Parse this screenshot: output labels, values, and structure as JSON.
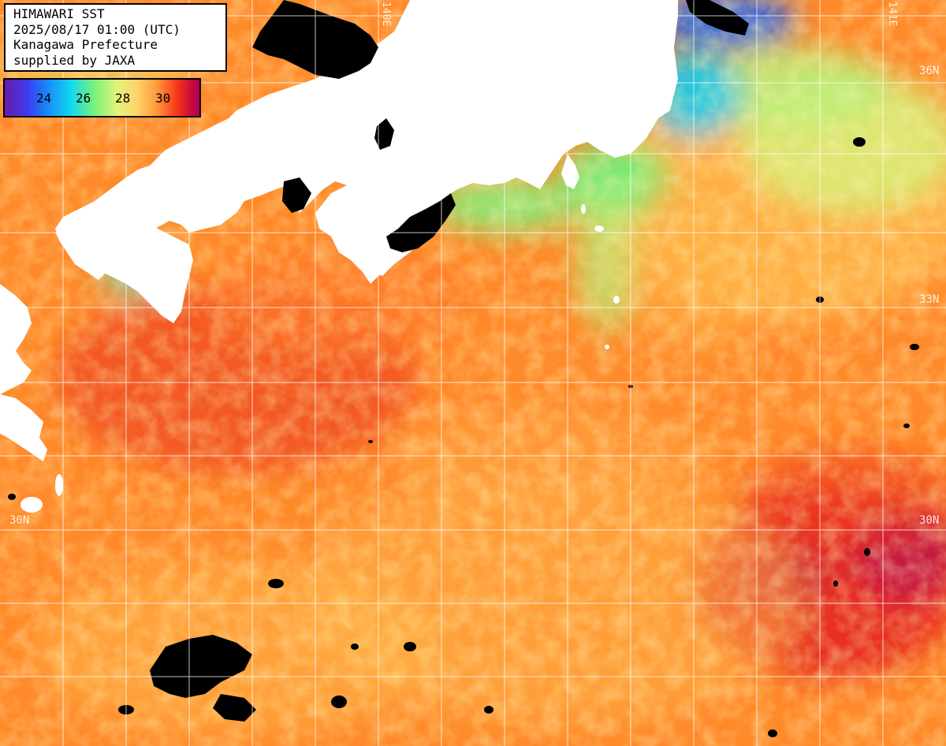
{
  "info": {
    "line1": "HIMAWARI SST",
    "line2": "2025/08/17 01:00 (UTC)",
    "line3": "Kanagawa Prefecture",
    "line4": "supplied by JAXA"
  },
  "legend": {
    "labels": [
      "24",
      "26",
      "28",
      "30"
    ],
    "colors": [
      "#6a1aa8",
      "#1a8af8",
      "#10d8f0",
      "#7af27a",
      "#ffd26a",
      "#ff9a3a",
      "#f83a1a",
      "#b0005a"
    ]
  },
  "grid_labels": {
    "lat_36": "36N",
    "lat_33": "33N",
    "lat_30_left": "30N",
    "lat_30_right": "30N",
    "lon_140": "140E",
    "lon_141": "141E"
  },
  "colors": {
    "sea_warm": "#ff8a2a",
    "sea_hot": "#e8281e",
    "sea_cool": "#7af27a",
    "sea_cold": "#10c8f0",
    "land": "#ffffff",
    "cloud": "#000000",
    "grid": "#ffffff"
  }
}
